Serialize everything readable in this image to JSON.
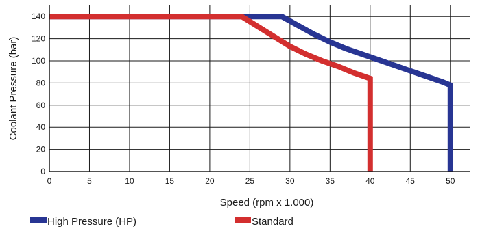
{
  "chart_data": {
    "type": "line",
    "title": "",
    "xlabel": "Speed (rpm x 1.000)",
    "ylabel": "Coolant Pressure (bar)",
    "xlim": [
      0,
      52.5
    ],
    "ylim": [
      0,
      150
    ],
    "xticks": [
      0,
      5,
      10,
      15,
      20,
      25,
      30,
      35,
      40,
      45,
      50
    ],
    "yticks": [
      0,
      20,
      40,
      60,
      80,
      100,
      120,
      140
    ],
    "grid": true,
    "legend_position": "bottom",
    "series": [
      {
        "name": "High Pressure (HP)",
        "color": "#283593",
        "x": [
          0,
          29,
          31,
          33,
          35,
          37,
          39,
          41,
          43,
          45,
          47,
          49,
          50,
          50
        ],
        "y": [
          140,
          140,
          132,
          124,
          117,
          111,
          106,
          101,
          96,
          91,
          86,
          81,
          78,
          0
        ]
      },
      {
        "name": "Standard",
        "color": "#d32f2f",
        "x": [
          0,
          24,
          26,
          28,
          30,
          32,
          34,
          36,
          38,
          40,
          40
        ],
        "y": [
          140,
          140,
          131,
          122,
          113,
          106,
          100,
          95,
          89,
          84,
          0
        ]
      }
    ]
  }
}
